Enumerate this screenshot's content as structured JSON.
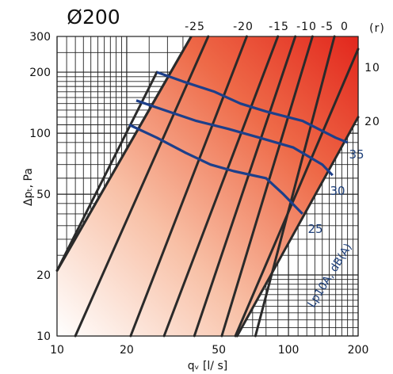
{
  "chart_data": {
    "type": "line",
    "title": "Ø200",
    "xlabel": "qᵥ [l/ s]",
    "ylabel": "Δpₜ, Pa",
    "xscale": "log",
    "yscale": "log",
    "xlim": [
      10,
      200
    ],
    "ylim": [
      10,
      300
    ],
    "x_ticks": [
      "10",
      "20",
      "50",
      "100",
      "200"
    ],
    "y_ticks": [
      "10",
      "20",
      "50",
      "100",
      "200",
      "300"
    ],
    "grid": true,
    "damper_setting_label": "(r)",
    "damper_settings": [
      {
        "label": "-25",
        "points": [
          [
            27,
            200
          ],
          [
            10,
            21
          ]
        ]
      },
      {
        "label": "-20",
        "points": [
          [
            45,
            300
          ],
          [
            12,
            10
          ]
        ]
      },
      {
        "label": "-15",
        "points": [
          [
            66,
            300
          ],
          [
            20.8,
            10
          ]
        ]
      },
      {
        "label": "-10",
        "points": [
          [
            90,
            300
          ],
          [
            29,
            10
          ]
        ]
      },
      {
        "label": "-5",
        "points": [
          [
            107,
            300
          ],
          [
            39.2,
            10
          ]
        ]
      },
      {
        "label": "0",
        "points": [
          [
            127,
            300
          ],
          [
            51.5,
            10
          ]
        ]
      },
      {
        "label": "",
        "points": [
          [
            158,
            300
          ],
          [
            72,
            10
          ]
        ]
      },
      {
        "label": "10",
        "points": [
          [
            200,
            260
          ],
          [
            59,
            10
          ]
        ]
      },
      {
        "label": "20",
        "points": [
          [
            200,
            120
          ],
          [
            60,
            10
          ]
        ]
      }
    ],
    "noise_series_label": "Lp10A, dB(A)",
    "noise_curves": [
      {
        "label": "25",
        "points": [
          [
            20.5,
            110
          ],
          [
            27,
            95
          ],
          [
            36,
            80
          ],
          [
            46,
            70
          ],
          [
            58,
            65
          ],
          [
            80,
            60
          ],
          [
            95,
            50
          ],
          [
            115,
            40
          ]
        ]
      },
      {
        "label": "30",
        "points": [
          [
            22,
            145
          ],
          [
            29,
            130
          ],
          [
            40,
            115
          ],
          [
            55,
            105
          ],
          [
            75,
            95
          ],
          [
            105,
            85
          ],
          [
            140,
            70
          ],
          [
            155,
            62
          ]
        ]
      },
      {
        "label": "35",
        "points": [
          [
            27,
            200
          ],
          [
            35,
            180
          ],
          [
            48,
            160
          ],
          [
            62,
            140
          ],
          [
            80,
            128
          ],
          [
            115,
            115
          ],
          [
            160,
            95
          ],
          [
            180,
            90
          ]
        ]
      }
    ]
  }
}
